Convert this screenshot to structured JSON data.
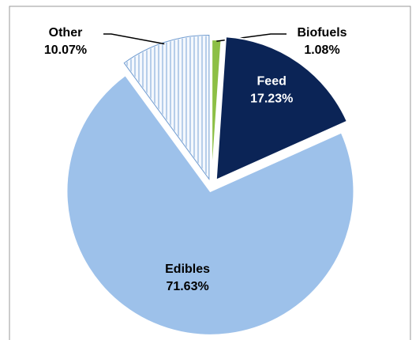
{
  "chart_data": {
    "type": "pie",
    "categories": [
      "Biofuels",
      "Feed",
      "Edibles",
      "Other"
    ],
    "values": [
      1.08,
      17.23,
      71.63,
      10.07
    ],
    "value_labels": [
      "1.08%",
      "17.23%",
      "71.63%",
      "10.07%"
    ],
    "colors": [
      "#8dbf45",
      "#0b2456",
      "#9dc1ea",
      "#dce7f5"
    ],
    "hatch": [
      false,
      false,
      false,
      true
    ]
  }
}
